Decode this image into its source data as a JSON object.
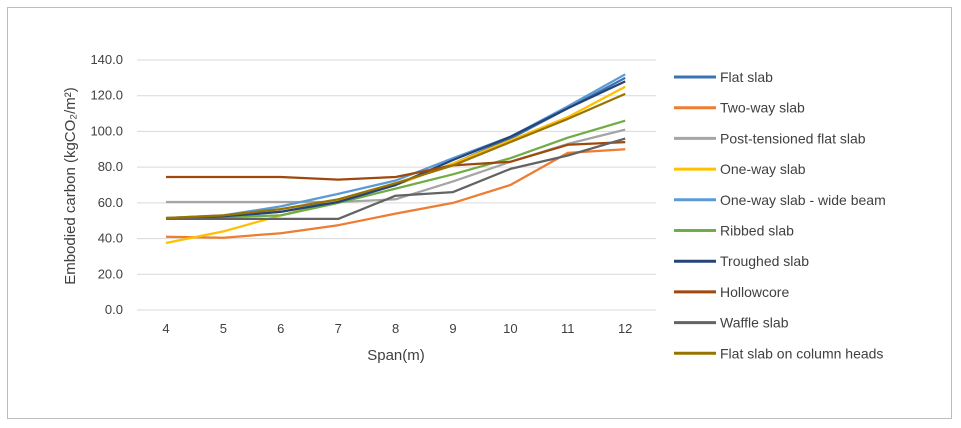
{
  "chart_data": {
    "type": "line",
    "xlabel": "Span(m)",
    "ylabel": "Embodied carbon (kgCO₂/m²)",
    "x": [
      4,
      5,
      6,
      7,
      8,
      9,
      10,
      11,
      12
    ],
    "ylim": [
      0,
      140
    ],
    "yticks": [
      "0.0",
      "20.0",
      "40.0",
      "60.0",
      "80.0",
      "100.0",
      "120.0",
      "140.0"
    ],
    "grid": "horizontal",
    "legend_position": "right",
    "series": [
      {
        "name": "Flat slab",
        "color": "#3C73B4",
        "values": [
          51,
          52,
          55,
          61,
          70,
          82,
          96,
          113,
          130
        ]
      },
      {
        "name": "Two-way slab",
        "color": "#ED7D31",
        "values": [
          41,
          40.5,
          43,
          47.5,
          54,
          60,
          70,
          88,
          90
        ]
      },
      {
        "name": "Post-tensioned flat slab",
        "color": "#A5A5A5",
        "values": [
          60.5,
          60.5,
          60.5,
          60.5,
          62,
          72,
          83,
          93,
          101
        ]
      },
      {
        "name": "One-way slab",
        "color": "#FFC000",
        "values": [
          37.5,
          44,
          53,
          61,
          70,
          82,
          95,
          108,
          125
        ]
      },
      {
        "name": "One-way slab - wide beam",
        "color": "#5B9BD5",
        "values": [
          51.5,
          53,
          58,
          65,
          72.5,
          85,
          97,
          114,
          132
        ]
      },
      {
        "name": "Ribbed slab",
        "color": "#70AD47",
        "values": [
          51.5,
          52,
          53,
          60,
          68,
          76,
          85,
          96.5,
          106
        ]
      },
      {
        "name": "Troughed slab",
        "color": "#264478",
        "values": [
          51,
          52.5,
          55,
          60.5,
          70,
          84,
          97,
          113,
          128
        ]
      },
      {
        "name": "Hollowcore",
        "color": "#9E480E",
        "values": [
          74.5,
          74.5,
          74.5,
          73,
          74.5,
          81,
          83,
          92.5,
          94
        ]
      },
      {
        "name": "Waffle slab",
        "color": "#636363",
        "values": [
          51,
          51,
          51,
          51,
          64,
          66,
          79,
          86.5,
          96
        ]
      },
      {
        "name": "Flat slab on column heads",
        "color": "#997300",
        "values": [
          51.5,
          53,
          56.5,
          62,
          71,
          81,
          94,
          107,
          121
        ]
      }
    ]
  }
}
